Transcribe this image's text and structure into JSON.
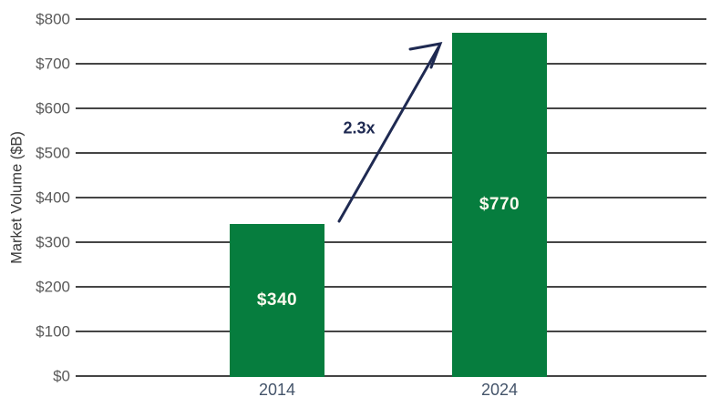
{
  "chart_data": {
    "type": "bar",
    "title": "",
    "categories": [
      "2014",
      "2024"
    ],
    "values": [
      340,
      770
    ],
    "bar_labels": [
      "$340",
      "$770"
    ],
    "xlabel": "",
    "ylabel": "Market Volume ($B)",
    "ylim": [
      0,
      800
    ],
    "ytick_step": 100,
    "ytick_labels": [
      "$0",
      "$100",
      "$200",
      "$300",
      "$400",
      "$500",
      "$600",
      "$700",
      "$800"
    ],
    "grid": true,
    "legend": false,
    "annotation": {
      "text": "2.3x",
      "meaning": "growth multiple from 2014 to 2024 shown with an upward arrow"
    },
    "colors": {
      "bar": "#067D3E",
      "bar_label": "#FCFAEE",
      "annotation": "#1F2A52",
      "gridline": "#454545",
      "tick_label": "#595959",
      "x_label": "#44546A",
      "axis_label": "#3A3A3A",
      "background": "#FFFFFF"
    }
  }
}
